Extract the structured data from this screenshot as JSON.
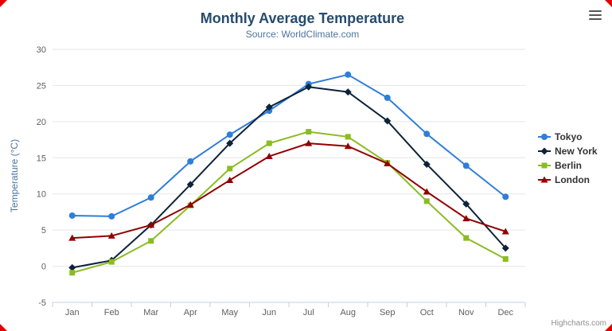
{
  "chart_data": {
    "type": "line",
    "title": "Monthly Average Temperature",
    "subtitle": "Source: WorldClimate.com",
    "xlabel": "",
    "ylabel": "Temperature (°C)",
    "ylim": [
      -5,
      30
    ],
    "ytick_interval": 5,
    "grid": true,
    "legend_position": "right",
    "categories": [
      "Jan",
      "Feb",
      "Mar",
      "Apr",
      "May",
      "Jun",
      "Jul",
      "Aug",
      "Sep",
      "Oct",
      "Nov",
      "Dec"
    ],
    "series": [
      {
        "name": "Tokyo",
        "color": "#2f7ed8",
        "marker": "circle",
        "values": [
          7.0,
          6.9,
          9.5,
          14.5,
          18.2,
          21.5,
          25.2,
          26.5,
          23.3,
          18.3,
          13.9,
          9.6
        ]
      },
      {
        "name": "New York",
        "color": "#0d233a",
        "marker": "diamond",
        "values": [
          -0.2,
          0.8,
          5.7,
          11.3,
          17.0,
          22.0,
          24.8,
          24.1,
          20.1,
          14.1,
          8.6,
          2.5
        ]
      },
      {
        "name": "Berlin",
        "color": "#8bbc21",
        "marker": "square",
        "values": [
          -0.9,
          0.6,
          3.5,
          8.4,
          13.5,
          17.0,
          18.6,
          17.9,
          14.3,
          9.0,
          3.9,
          1.0
        ]
      },
      {
        "name": "London",
        "color": "#910000",
        "marker": "triangle",
        "values": [
          3.9,
          4.2,
          5.7,
          8.5,
          11.9,
          15.2,
          17.0,
          16.6,
          14.2,
          10.3,
          6.6,
          4.8
        ]
      }
    ],
    "axis_colors": {
      "labels": "#606060",
      "line": "#c0d0e0",
      "grid": "#e6e6e6"
    }
  },
  "legend": {
    "text_color": "#333333"
  },
  "credits": "Highcharts.com",
  "icons": {
    "menu": "hamburger-menu"
  },
  "decorations": {
    "corner_marker_color": "#e60000"
  }
}
